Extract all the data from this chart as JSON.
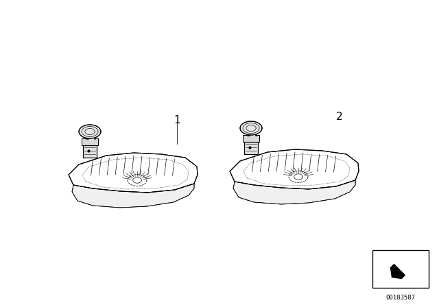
{
  "background_color": "#ffffff",
  "label1": "1",
  "label2": "2",
  "part_number": "00183587",
  "line_color": "#000000",
  "line_width": 0.8
}
